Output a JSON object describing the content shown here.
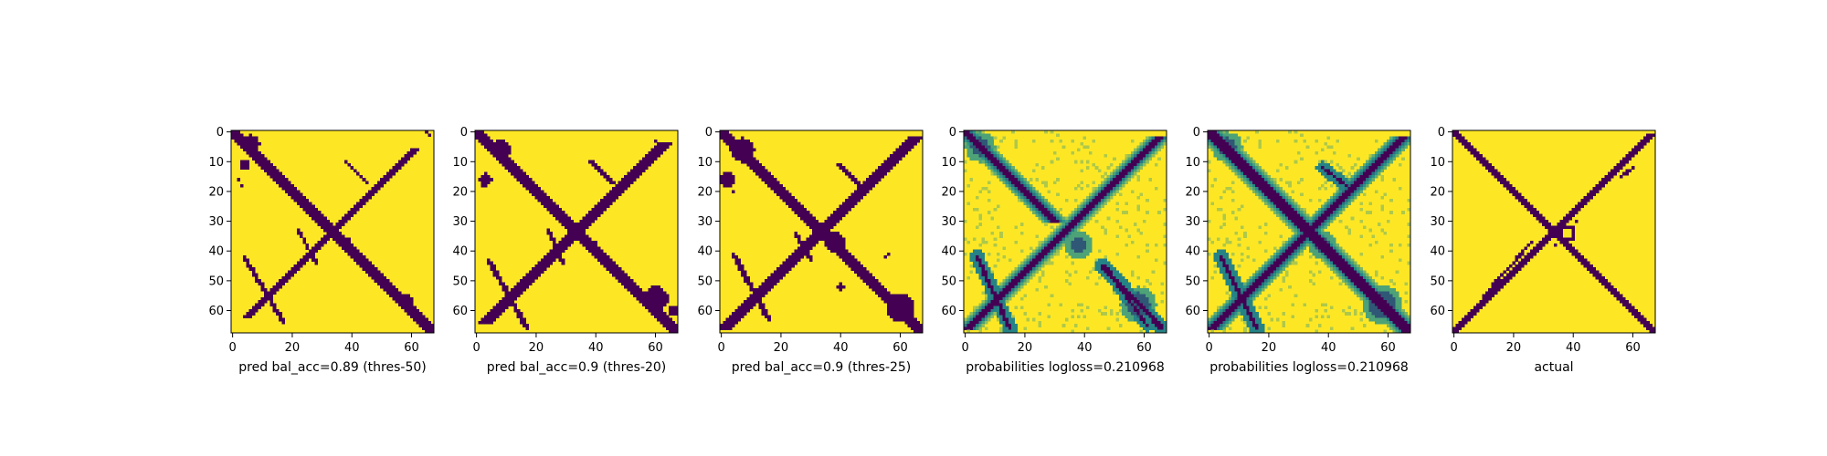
{
  "chart_data": [
    {
      "type": "heatmap",
      "xlabel": "pred bal_acc=0.89 (thres-50)",
      "grid_size": 68,
      "x_ticks": [
        0,
        20,
        40,
        60
      ],
      "y_ticks": [
        0,
        10,
        20,
        30,
        40,
        50,
        60
      ],
      "colors": {
        "low": "#440154",
        "high": "#fde725"
      },
      "features": {
        "main_diag_halfwidth": 1.7,
        "anti_diag_halfwidth": 1.4,
        "anti_range": [
          6,
          62
        ],
        "side_lines": [
          {
            "from": [
              42,
              4
            ],
            "to": [
              64,
              17
            ],
            "hw": 0.7
          },
          {
            "from": [
              33,
              22
            ],
            "to": [
              44,
              28
            ],
            "hw": 0.5
          },
          {
            "from": [
              10,
              38
            ],
            "to": [
              17,
              45
            ],
            "hw": 0.6
          }
        ],
        "blobs": [
          {
            "c": [
              4,
              6
            ],
            "r": 3.0
          },
          {
            "c": [
              11,
              4
            ],
            "r": 1.8
          },
          {
            "c": [
              37,
              38
            ],
            "r": 1.5
          },
          {
            "c": [
              57,
              58
            ],
            "r": 2.5
          }
        ],
        "dots": [
          [
            16,
            2
          ],
          [
            18,
            3
          ],
          [
            0,
            65
          ],
          [
            1,
            66
          ]
        ]
      }
    },
    {
      "type": "heatmap",
      "xlabel": "pred bal_acc=0.9 (thres-20)",
      "grid_size": 68,
      "x_ticks": [
        0,
        20,
        40,
        60
      ],
      "y_ticks": [
        0,
        10,
        20,
        30,
        40,
        50,
        60
      ],
      "colors": {
        "low": "#440154",
        "high": "#fde725"
      },
      "features": {
        "main_diag_halfwidth": 1.9,
        "anti_diag_halfwidth": 1.6,
        "anti_range": [
          4,
          64
        ],
        "side_lines": [
          {
            "from": [
              43,
              4
            ],
            "to": [
              66,
              17
            ],
            "hw": 0.8
          },
          {
            "from": [
              33,
              24
            ],
            "to": [
              44,
              29
            ],
            "hw": 0.6
          },
          {
            "from": [
              10,
              38
            ],
            "to": [
              17,
              46
            ],
            "hw": 0.7
          }
        ],
        "blobs": [
          {
            "c": [
              6,
              8
            ],
            "r": 3.6
          },
          {
            "c": [
              16,
              3
            ],
            "r": 2.0
          },
          {
            "c": [
              38,
              39
            ],
            "r": 1.8
          },
          {
            "c": [
              56,
              60
            ],
            "r": 4.2
          },
          {
            "c": [
              60,
              66
            ],
            "r": 1.8
          }
        ],
        "dots": [
          [
            18,
            2
          ],
          [
            17,
            3
          ],
          [
            3,
            60
          ]
        ]
      }
    },
    {
      "type": "heatmap",
      "xlabel": "pred bal_acc=0.9 (thres-25)",
      "grid_size": 68,
      "x_ticks": [
        0,
        20,
        40,
        60
      ],
      "y_ticks": [
        0,
        10,
        20,
        30,
        40,
        50,
        60
      ],
      "colors": {
        "low": "#440154",
        "high": "#fde725"
      },
      "features": {
        "main_diag_halfwidth": 2.1,
        "anti_diag_halfwidth": 1.8,
        "anti_range": [
          2,
          66
        ],
        "side_lines": [
          {
            "from": [
              41,
              4
            ],
            "to": [
              63,
              16
            ],
            "hw": 0.8
          },
          {
            "from": [
              34,
              25
            ],
            "to": [
              43,
              30
            ],
            "hw": 0.6
          },
          {
            "from": [
              11,
              39
            ],
            "to": [
              18,
              47
            ],
            "hw": 0.7
          }
        ],
        "blobs": [
          {
            "c": [
              6,
              7
            ],
            "r": 4.0
          },
          {
            "c": [
              16,
              2
            ],
            "r": 2.4
          },
          {
            "c": [
              37,
              38
            ],
            "r": 3.2
          },
          {
            "c": [
              59,
              60
            ],
            "r": 4.6
          },
          {
            "c": [
              52,
              40
            ],
            "r": 1.2
          }
        ],
        "dots": [
          [
            18,
            3
          ],
          [
            20,
            4
          ],
          [
            41,
            56
          ],
          [
            42,
            55
          ]
        ]
      }
    },
    {
      "type": "heatmap",
      "xlabel": "probabilities logloss=0.210968",
      "grid_size": 68,
      "x_ticks": [
        0,
        20,
        40,
        60
      ],
      "y_ticks": [
        0,
        10,
        20,
        30,
        40,
        50,
        60
      ],
      "colors": {
        "low": "#440154",
        "mid": "#21918c",
        "high": "#fde725"
      },
      "features": {
        "probabilistic": true,
        "main_diag_halfwidth": 1.2,
        "main_range": [
          0,
          30
        ],
        "main_diag_halo": 3.5,
        "anti_diag_halfwidth": 1.1,
        "anti_range": [
          2,
          66
        ],
        "anti_diag_halo": 3.0,
        "side_lines": [
          {
            "from": [
              45,
              46
            ],
            "to": [
              66,
              66
            ],
            "hw": 0.8
          },
          {
            "from": [
              47,
              48
            ],
            "to": [
              65,
              61
            ],
            "hw": 0.5
          },
          {
            "from": [
              42,
              4
            ],
            "to": [
              66,
              15
            ],
            "hw": 0.7
          }
        ],
        "blobs": [
          {
            "c": [
              5,
              5
            ],
            "r": 3.0
          },
          {
            "c": [
              58,
              58
            ],
            "r": 4.0
          },
          {
            "c": [
              38,
              38
            ],
            "r": 2.5
          }
        ],
        "dots": []
      }
    },
    {
      "type": "heatmap",
      "xlabel": "probabilities logloss=0.210968",
      "grid_size": 68,
      "x_ticks": [
        0,
        20,
        40,
        60
      ],
      "y_ticks": [
        0,
        10,
        20,
        30,
        40,
        50,
        60
      ],
      "colors": {
        "low": "#440154",
        "mid": "#21918c",
        "high": "#fde725"
      },
      "features": {
        "probabilistic": true,
        "main_diag_halfwidth": 1.5,
        "main_range": [
          0,
          67
        ],
        "main_diag_halo": 4.0,
        "anti_diag_halfwidth": 1.3,
        "anti_range": [
          2,
          66
        ],
        "anti_diag_halo": 3.5,
        "side_lines": [
          {
            "from": [
              42,
              4
            ],
            "to": [
              66,
              16
            ],
            "hw": 0.7
          },
          {
            "from": [
              12,
              38
            ],
            "to": [
              18,
              46
            ],
            "hw": 0.5
          }
        ],
        "blobs": [
          {
            "c": [
              5,
              6
            ],
            "r": 3.0
          },
          {
            "c": [
              58,
              58
            ],
            "r": 4.5
          },
          {
            "c": [
              38,
              38
            ],
            "r": 2.8
          }
        ],
        "dots": []
      }
    },
    {
      "type": "heatmap",
      "xlabel": "actual",
      "grid_size": 68,
      "x_ticks": [
        0,
        20,
        40,
        60
      ],
      "y_ticks": [
        0,
        10,
        20,
        30,
        40,
        50,
        60
      ],
      "colors": {
        "low": "#440154",
        "high": "#fde725"
      },
      "features": {
        "main_diag_halfwidth": 1.1,
        "anti_diag_halfwidth": 0.9,
        "anti_range": [
          1,
          67
        ],
        "side_lines": [
          {
            "from": [
              37,
              26
            ],
            "to": [
              55,
              10
            ],
            "hw": 0.45
          },
          {
            "from": [
              12,
              60
            ],
            "to": [
              15,
              56
            ],
            "hw": 0.45
          }
        ],
        "blobs": [],
        "squares": [
          {
            "c": [
              34,
              38
            ],
            "h": 2.6
          }
        ],
        "dots": [
          [
            36,
            35
          ],
          [
            38,
            34
          ],
          [
            30,
            41
          ]
        ]
      }
    }
  ]
}
